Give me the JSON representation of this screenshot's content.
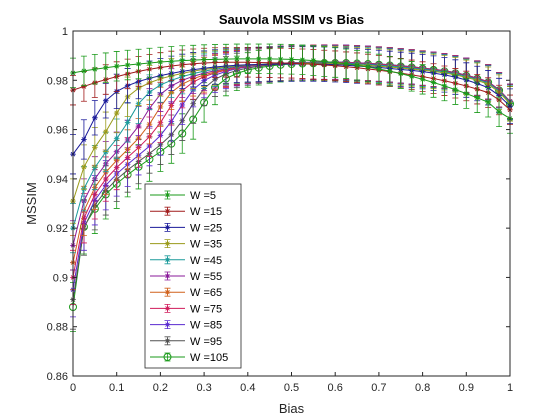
{
  "chart_data": {
    "type": "line",
    "title": "Sauvola MSSIM vs Bias",
    "xlabel": "Bias",
    "ylabel": "MSSIM",
    "xlim": [
      0,
      1
    ],
    "ylim": [
      0.86,
      1
    ],
    "xticks": [
      "0",
      "0.1",
      "0.2",
      "0.3",
      "0.4",
      "0.5",
      "0.6",
      "0.7",
      "0.8",
      "0.9",
      "1"
    ],
    "yticks": [
      "0.86",
      "0.88",
      "0.9",
      "0.92",
      "0.94",
      "0.96",
      "0.98",
      "1"
    ],
    "grid": false,
    "legend_position": "lower-left",
    "x": [
      0,
      0.025,
      0.05,
      0.075,
      0.1,
      0.125,
      0.15,
      0.175,
      0.2,
      0.225,
      0.25,
      0.275,
      0.3,
      0.325,
      0.35,
      0.375,
      0.4,
      0.425,
      0.45,
      0.475,
      0.5,
      0.525,
      0.55,
      0.575,
      0.6,
      0.625,
      0.65,
      0.675,
      0.7,
      0.725,
      0.75,
      0.775,
      0.8,
      0.825,
      0.85,
      0.875,
      0.9,
      0.925,
      0.95,
      0.975,
      1
    ],
    "series": [
      {
        "name": "W =5",
        "color": "#1a9a1a",
        "marker": "star",
        "values": [
          0.983,
          0.9838,
          0.9845,
          0.9851,
          0.9857,
          0.9862,
          0.9866,
          0.987,
          0.9874,
          0.9877,
          0.988,
          0.9882,
          0.9884,
          0.9885,
          0.9886,
          0.9887,
          0.9887,
          0.9887,
          0.9887,
          0.9886,
          0.9885,
          0.9883,
          0.988,
          0.9876,
          0.9872,
          0.9867,
          0.9861,
          0.9854,
          0.9846,
          0.9837,
          0.9827,
          0.9816,
          0.9804,
          0.9791,
          0.9777,
          0.9762,
          0.9746,
          0.9729,
          0.9711,
          0.9672,
          0.9645
        ],
        "errors": [
          0.006,
          0.006,
          0.006,
          0.006,
          0.006,
          0.006,
          0.006,
          0.006,
          0.006,
          0.006,
          0.006,
          0.006,
          0.006,
          0.006,
          0.006,
          0.006,
          0.006,
          0.006,
          0.006,
          0.006,
          0.006,
          0.006,
          0.006,
          0.006,
          0.006,
          0.006,
          0.006,
          0.006,
          0.006,
          0.006,
          0.006,
          0.006,
          0.006,
          0.006,
          0.006,
          0.006,
          0.006,
          0.006,
          0.006,
          0.006,
          0.006
        ]
      },
      {
        "name": "W =15",
        "color": "#a01a1a",
        "marker": "star",
        "values": [
          0.976,
          0.9775,
          0.979,
          0.9803,
          0.9815,
          0.9826,
          0.9836,
          0.9845,
          0.9852,
          0.9858,
          0.9863,
          0.9867,
          0.987,
          0.9872,
          0.9873,
          0.9873,
          0.9873,
          0.9872,
          0.9871,
          0.987,
          0.9869,
          0.9867,
          0.9865,
          0.9862,
          0.9859,
          0.9855,
          0.9851,
          0.9846,
          0.9841,
          0.9835,
          0.9829,
          0.9822,
          0.9815,
          0.9807,
          0.9798,
          0.9788,
          0.9777,
          0.9764,
          0.975,
          0.972,
          0.968
        ],
        "errors": [
          0.006,
          0.006,
          0.006,
          0.006,
          0.006,
          0.006,
          0.006,
          0.006,
          0.006,
          0.006,
          0.006,
          0.006,
          0.006,
          0.006,
          0.006,
          0.006,
          0.006,
          0.006,
          0.006,
          0.006,
          0.006,
          0.006,
          0.006,
          0.006,
          0.006,
          0.006,
          0.006,
          0.006,
          0.006,
          0.006,
          0.006,
          0.006,
          0.006,
          0.006,
          0.006,
          0.006,
          0.006,
          0.006,
          0.006,
          0.006,
          0.006
        ]
      },
      {
        "name": "W =25",
        "color": "#1a1a9a",
        "marker": "star",
        "values": [
          0.95,
          0.956,
          0.9648,
          0.9717,
          0.9755,
          0.9778,
          0.9795,
          0.9808,
          0.9819,
          0.9828,
          0.9836,
          0.9843,
          0.9849,
          0.9854,
          0.9858,
          0.9861,
          0.9863,
          0.9864,
          0.9865,
          0.9866,
          0.9866,
          0.9866,
          0.9866,
          0.9865,
          0.9863,
          0.9861,
          0.9858,
          0.9855,
          0.9852,
          0.9848,
          0.9844,
          0.984,
          0.9835,
          0.9829,
          0.9822,
          0.9813,
          0.9801,
          0.9787,
          0.977,
          0.9738,
          0.9695
        ],
        "errors": [
          0.008,
          0.008,
          0.007,
          0.007,
          0.007,
          0.007,
          0.007,
          0.007,
          0.007,
          0.007,
          0.007,
          0.007,
          0.007,
          0.007,
          0.007,
          0.007,
          0.007,
          0.007,
          0.007,
          0.007,
          0.007,
          0.007,
          0.007,
          0.007,
          0.007,
          0.007,
          0.007,
          0.007,
          0.007,
          0.007,
          0.007,
          0.007,
          0.007,
          0.007,
          0.007,
          0.007,
          0.007,
          0.007,
          0.007,
          0.007,
          0.007
        ]
      },
      {
        "name": "W =35",
        "color": "#9a9a1a",
        "marker": "star",
        "values": [
          0.931,
          0.9448,
          0.9528,
          0.9591,
          0.9667,
          0.9733,
          0.9768,
          0.979,
          0.9806,
          0.9818,
          0.9828,
          0.9837,
          0.9844,
          0.985,
          0.9855,
          0.9859,
          0.9862,
          0.9864,
          0.9866,
          0.9867,
          0.9868,
          0.9868,
          0.9868,
          0.9868,
          0.9867,
          0.9865,
          0.9863,
          0.986,
          0.9857,
          0.9854,
          0.985,
          0.9846,
          0.9841,
          0.9836,
          0.983,
          0.9822,
          0.9812,
          0.98,
          0.9784,
          0.9752,
          0.9705
        ],
        "errors": [
          0.009,
          0.009,
          0.008,
          0.008,
          0.008,
          0.008,
          0.007,
          0.007,
          0.007,
          0.007,
          0.007,
          0.007,
          0.007,
          0.007,
          0.007,
          0.007,
          0.007,
          0.007,
          0.007,
          0.007,
          0.007,
          0.007,
          0.007,
          0.007,
          0.007,
          0.007,
          0.007,
          0.007,
          0.007,
          0.007,
          0.007,
          0.007,
          0.007,
          0.007,
          0.007,
          0.007,
          0.007,
          0.007,
          0.007,
          0.007,
          0.007
        ]
      },
      {
        "name": "W =45",
        "color": "#1a9a9a",
        "marker": "star",
        "values": [
          0.92,
          0.936,
          0.9446,
          0.9509,
          0.9563,
          0.9629,
          0.9705,
          0.9752,
          0.9781,
          0.98,
          0.9815,
          0.9827,
          0.9837,
          0.9845,
          0.9852,
          0.9857,
          0.9861,
          0.9864,
          0.9866,
          0.9868,
          0.9869,
          0.987,
          0.987,
          0.987,
          0.9869,
          0.9868,
          0.9866,
          0.9864,
          0.9861,
          0.9858,
          0.9854,
          0.985,
          0.9845,
          0.984,
          0.9834,
          0.9826,
          0.9816,
          0.9804,
          0.9789,
          0.9757,
          0.971
        ],
        "errors": [
          0.01,
          0.009,
          0.009,
          0.008,
          0.008,
          0.008,
          0.008,
          0.007,
          0.007,
          0.007,
          0.007,
          0.007,
          0.007,
          0.007,
          0.007,
          0.007,
          0.007,
          0.007,
          0.007,
          0.007,
          0.007,
          0.007,
          0.007,
          0.007,
          0.007,
          0.007,
          0.007,
          0.007,
          0.007,
          0.007,
          0.007,
          0.007,
          0.007,
          0.007,
          0.007,
          0.007,
          0.007,
          0.007,
          0.007,
          0.007,
          0.007
        ]
      },
      {
        "name": "W =55",
        "color": "#8a1a9a",
        "marker": "star",
        "values": [
          0.913,
          0.931,
          0.94,
          0.9461,
          0.951,
          0.9558,
          0.9614,
          0.9686,
          0.9743,
          0.9777,
          0.98,
          0.9816,
          0.9829,
          0.9839,
          0.9847,
          0.9854,
          0.9859,
          0.9863,
          0.9866,
          0.9868,
          0.987,
          0.9871,
          0.9871,
          0.9871,
          0.9871,
          0.987,
          0.9868,
          0.9866,
          0.9863,
          0.986,
          0.9856,
          0.9852,
          0.9847,
          0.9842,
          0.9836,
          0.9828,
          0.9818,
          0.9806,
          0.9791,
          0.9759,
          0.9712
        ],
        "errors": [
          0.01,
          0.009,
          0.009,
          0.009,
          0.008,
          0.008,
          0.008,
          0.008,
          0.007,
          0.007,
          0.007,
          0.007,
          0.007,
          0.007,
          0.007,
          0.007,
          0.007,
          0.007,
          0.007,
          0.007,
          0.007,
          0.007,
          0.007,
          0.007,
          0.007,
          0.007,
          0.007,
          0.007,
          0.007,
          0.007,
          0.007,
          0.007,
          0.007,
          0.007,
          0.007,
          0.007,
          0.007,
          0.007,
          0.007,
          0.007,
          0.007
        ]
      },
      {
        "name": "W =65",
        "color": "#d0601a",
        "marker": "star",
        "values": [
          0.906,
          0.927,
          0.9365,
          0.9427,
          0.9475,
          0.9519,
          0.9565,
          0.9622,
          0.9692,
          0.9751,
          0.9784,
          0.9806,
          0.9822,
          0.9834,
          0.9844,
          0.9852,
          0.9858,
          0.9862,
          0.9866,
          0.9868,
          0.987,
          0.9871,
          0.9872,
          0.9872,
          0.9872,
          0.9871,
          0.9869,
          0.9867,
          0.9864,
          0.9861,
          0.9857,
          0.9853,
          0.9848,
          0.9843,
          0.9837,
          0.9829,
          0.9819,
          0.9807,
          0.9792,
          0.976,
          0.9713
        ],
        "errors": [
          0.011,
          0.01,
          0.009,
          0.009,
          0.008,
          0.008,
          0.008,
          0.008,
          0.008,
          0.007,
          0.007,
          0.007,
          0.007,
          0.007,
          0.007,
          0.007,
          0.007,
          0.007,
          0.007,
          0.007,
          0.007,
          0.007,
          0.007,
          0.007,
          0.007,
          0.007,
          0.007,
          0.007,
          0.007,
          0.007,
          0.007,
          0.007,
          0.007,
          0.007,
          0.007,
          0.007,
          0.007,
          0.007,
          0.007,
          0.007,
          0.007
        ]
      },
      {
        "name": "W =75",
        "color": "#d01a5a",
        "marker": "star",
        "values": [
          0.9,
          0.924,
          0.9337,
          0.9399,
          0.9446,
          0.9487,
          0.9527,
          0.9571,
          0.9628,
          0.9698,
          0.9758,
          0.9793,
          0.9815,
          0.983,
          0.9841,
          0.985,
          0.9857,
          0.9862,
          0.9866,
          0.9869,
          0.9871,
          0.9872,
          0.9873,
          0.9873,
          0.9873,
          0.9872,
          0.987,
          0.9868,
          0.9865,
          0.9862,
          0.9858,
          0.9854,
          0.9849,
          0.9844,
          0.9838,
          0.983,
          0.982,
          0.9808,
          0.9793,
          0.9761,
          0.9714
        ],
        "errors": [
          0.011,
          0.01,
          0.01,
          0.009,
          0.009,
          0.008,
          0.008,
          0.008,
          0.008,
          0.008,
          0.007,
          0.007,
          0.007,
          0.007,
          0.007,
          0.007,
          0.007,
          0.007,
          0.007,
          0.007,
          0.007,
          0.007,
          0.007,
          0.007,
          0.007,
          0.007,
          0.007,
          0.007,
          0.007,
          0.007,
          0.007,
          0.007,
          0.007,
          0.007,
          0.007,
          0.007,
          0.007,
          0.007,
          0.007,
          0.007,
          0.007
        ]
      },
      {
        "name": "W =85",
        "color": "#5a2ad0",
        "marker": "star",
        "values": [
          0.895,
          0.922,
          0.9313,
          0.9374,
          0.942,
          0.9459,
          0.9496,
          0.9533,
          0.9576,
          0.9633,
          0.97,
          0.9762,
          0.9799,
          0.9821,
          0.9836,
          0.9847,
          0.9855,
          0.9861,
          0.9865,
          0.9869,
          0.9871,
          0.9872,
          0.9873,
          0.9874,
          0.9874,
          0.9873,
          0.9871,
          0.9869,
          0.9866,
          0.9863,
          0.9859,
          0.9855,
          0.985,
          0.9845,
          0.9839,
          0.9831,
          0.9821,
          0.9809,
          0.9794,
          0.9762,
          0.9715
        ],
        "errors": [
          0.011,
          0.011,
          0.01,
          0.01,
          0.009,
          0.009,
          0.008,
          0.008,
          0.008,
          0.008,
          0.008,
          0.007,
          0.007,
          0.007,
          0.007,
          0.007,
          0.007,
          0.007,
          0.007,
          0.007,
          0.007,
          0.007,
          0.007,
          0.007,
          0.007,
          0.007,
          0.007,
          0.007,
          0.007,
          0.007,
          0.007,
          0.007,
          0.007,
          0.007,
          0.007,
          0.007,
          0.007,
          0.007,
          0.007,
          0.007,
          0.007
        ]
      },
      {
        "name": "W =95",
        "color": "#505050",
        "marker": "star",
        "values": [
          0.891,
          0.92,
          0.9293,
          0.9353,
          0.9398,
          0.9436,
          0.947,
          0.9503,
          0.9538,
          0.9579,
          0.9636,
          0.9705,
          0.9767,
          0.9804,
          0.9826,
          0.984,
          0.985,
          0.9857,
          0.9862,
          0.9866,
          0.9869,
          0.9871,
          0.9872,
          0.9873,
          0.9873,
          0.9873,
          0.9871,
          0.9869,
          0.9866,
          0.9863,
          0.9859,
          0.9855,
          0.985,
          0.9845,
          0.9839,
          0.9831,
          0.9821,
          0.9809,
          0.9794,
          0.9762,
          0.9715
        ],
        "errors": [
          0.012,
          0.011,
          0.01,
          0.01,
          0.009,
          0.009,
          0.009,
          0.008,
          0.008,
          0.008,
          0.008,
          0.008,
          0.007,
          0.007,
          0.007,
          0.007,
          0.007,
          0.007,
          0.007,
          0.007,
          0.007,
          0.007,
          0.007,
          0.007,
          0.007,
          0.007,
          0.007,
          0.007,
          0.007,
          0.007,
          0.007,
          0.007,
          0.007,
          0.007,
          0.007,
          0.007,
          0.007,
          0.007,
          0.007,
          0.007,
          0.007
        ]
      },
      {
        "name": "W =105",
        "color": "#1a9a1a",
        "marker": "circle",
        "values": [
          0.888,
          0.9205,
          0.9278,
          0.9337,
          0.938,
          0.9417,
          0.9449,
          0.948,
          0.951,
          0.9543,
          0.9584,
          0.9641,
          0.971,
          0.9771,
          0.9807,
          0.9828,
          0.9842,
          0.9851,
          0.9858,
          0.9863,
          0.9866,
          0.9868,
          0.9869,
          0.987,
          0.987,
          0.987,
          0.9868,
          0.9866,
          0.9863,
          0.986,
          0.9856,
          0.9852,
          0.9847,
          0.9842,
          0.9836,
          0.9828,
          0.9818,
          0.9806,
          0.9791,
          0.9759,
          0.9705
        ],
        "errors": [
          0.01,
          0.011,
          0.01,
          0.01,
          0.01,
          0.009,
          0.009,
          0.009,
          0.008,
          0.008,
          0.008,
          0.008,
          0.008,
          0.007,
          0.007,
          0.007,
          0.007,
          0.007,
          0.007,
          0.007,
          0.007,
          0.007,
          0.007,
          0.007,
          0.007,
          0.007,
          0.007,
          0.007,
          0.007,
          0.007,
          0.007,
          0.007,
          0.007,
          0.007,
          0.007,
          0.007,
          0.007,
          0.007,
          0.007,
          0.007,
          0.007
        ]
      }
    ]
  }
}
